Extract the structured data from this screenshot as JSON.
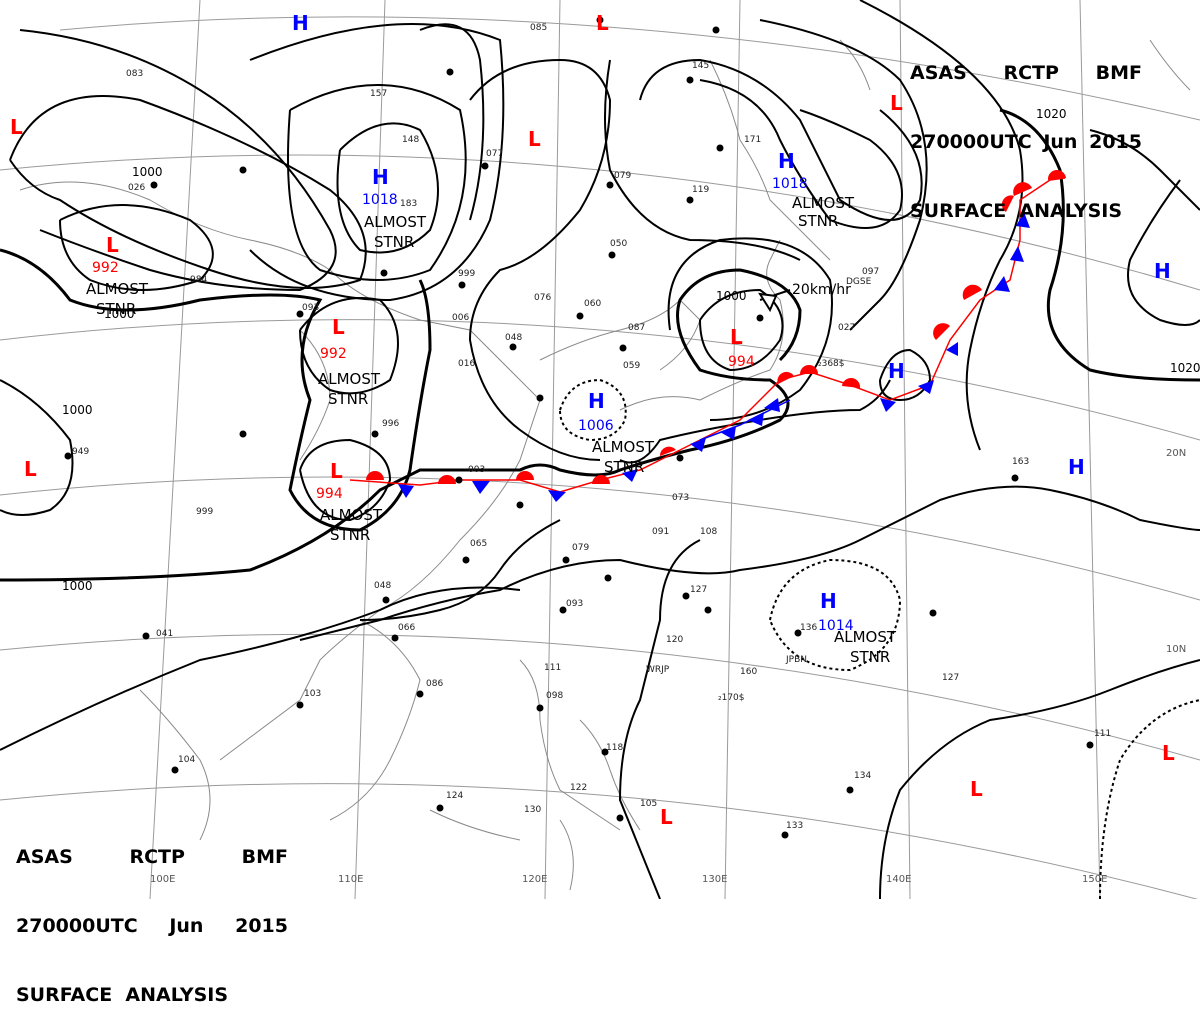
{
  "titles": {
    "top_right": {
      "line1": [
        "ASAS",
        "RCTP",
        "BMF"
      ],
      "line2": [
        "270000UTC",
        "Jun",
        "2015"
      ],
      "line3": "SURFACE  ANALYSIS"
    },
    "bottom_left": {
      "line1": [
        "ASAS",
        "RCTP",
        "BMF"
      ],
      "line2": [
        "270000UTC",
        "Jun",
        "2015"
      ],
      "line3": "SURFACE  ANALYSIS"
    }
  },
  "colors": {
    "high": "#0000ff",
    "low": "#ff0000",
    "isobar": "#000000",
    "grid": "#999999",
    "coast": "#888888"
  },
  "highs": [
    {
      "symbol": "H",
      "pressure": "1018",
      "note": [
        "ALMOST",
        "STNR"
      ]
    },
    {
      "symbol": "H",
      "pressure": "1018",
      "note": [
        "ALMOST",
        "STNR"
      ]
    },
    {
      "symbol": "H",
      "pressure": "1006",
      "note": [
        "ALMOST",
        "STNR"
      ]
    },
    {
      "symbol": "H",
      "pressure": "1014",
      "note": [
        "ALMOST",
        "STNR"
      ]
    },
    {
      "symbol": "H"
    },
    {
      "symbol": "H"
    },
    {
      "symbol": "H"
    },
    {
      "symbol": "H"
    }
  ],
  "lows": [
    {
      "symbol": "L",
      "pressure": "992",
      "note": [
        "ALMOST",
        "STNR"
      ]
    },
    {
      "symbol": "L",
      "pressure": "992",
      "note": [
        "ALMOST",
        "STNR"
      ]
    },
    {
      "symbol": "L",
      "pressure": "994",
      "note": [
        "ALMOST",
        "STNR"
      ]
    },
    {
      "symbol": "L",
      "pressure": "994",
      "note": [
        "20km/hr"
      ]
    },
    {
      "symbol": "L"
    },
    {
      "symbol": "L"
    },
    {
      "symbol": "L"
    },
    {
      "symbol": "L"
    },
    {
      "symbol": "L"
    },
    {
      "symbol": "L"
    },
    {
      "symbol": "L"
    },
    {
      "symbol": "L"
    }
  ],
  "isobar_labels": [
    "1000",
    "1000",
    "1000",
    "1000",
    "1000",
    "1020",
    "1020"
  ],
  "lon_labels": [
    "100E",
    "110E",
    "120E",
    "130E",
    "140E",
    "150E"
  ],
  "lat_labels": [
    "20N",
    "10N"
  ],
  "station_samples": [
    "085",
    "077",
    "079",
    "050",
    "060",
    "087",
    "059",
    "048",
    "076",
    "006",
    "999",
    "026",
    "003",
    "073",
    "079",
    "091",
    "108",
    "127",
    "093",
    "065",
    "048",
    "066",
    "086",
    "103",
    "104",
    "124",
    "130",
    "111",
    "098",
    "118",
    "122",
    "105",
    "133",
    "134",
    "111",
    "127",
    "145",
    "171",
    "119",
    "163",
    "136",
    "160",
    "120",
    "097",
    "027",
    "041",
    "999",
    "949",
    "984",
    "148",
    "183",
    "157",
    "083",
    "996",
    "093",
    "016",
    "₂170$",
    "₂368$",
    "WRJP",
    "JPBN",
    "DGSE"
  ]
}
